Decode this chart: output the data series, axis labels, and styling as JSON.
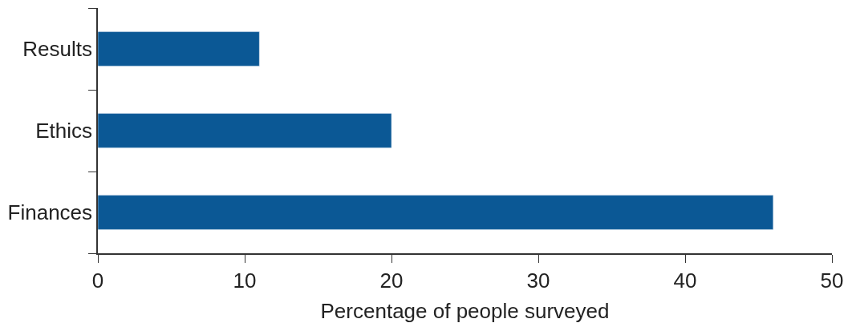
{
  "chart_data": {
    "type": "bar",
    "orientation": "horizontal",
    "categories": [
      "Results",
      "Ethics",
      "Finances"
    ],
    "values": [
      11,
      20,
      46
    ],
    "color": "#0b5895",
    "xlabel": "Percentage of people surveyed",
    "xlim": [
      0,
      50
    ],
    "xticks": [
      0,
      10,
      20,
      30,
      40,
      50
    ]
  }
}
